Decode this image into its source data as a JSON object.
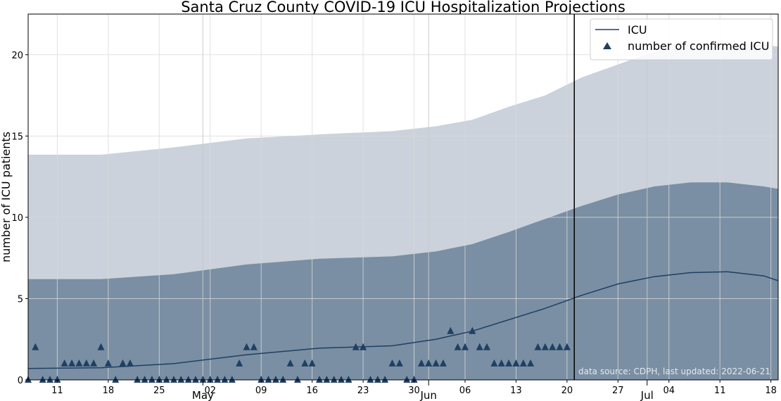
{
  "chart_data": {
    "type": "area",
    "title": "Santa Cruz County COVID-19 ICU Hospitalization Projections",
    "xlabel": "",
    "ylabel": "number of ICU patients",
    "ylim": [
      0,
      22.5
    ],
    "xlim": [
      "2022-04-07",
      "2022-07-19"
    ],
    "y_ticks": [
      0,
      5,
      10,
      15,
      20
    ],
    "x_ticks": [
      {
        "date": "2022-04-11",
        "label": "11"
      },
      {
        "date": "2022-04-18",
        "label": "18"
      },
      {
        "date": "2022-04-25",
        "label": "25"
      },
      {
        "date": "2022-05-02",
        "label": "02"
      },
      {
        "date": "2022-05-09",
        "label": "09"
      },
      {
        "date": "2022-05-16",
        "label": "16"
      },
      {
        "date": "2022-05-23",
        "label": "23"
      },
      {
        "date": "2022-05-30",
        "label": "30"
      },
      {
        "date": "2022-06-06",
        "label": "06"
      },
      {
        "date": "2022-06-13",
        "label": "13"
      },
      {
        "date": "2022-06-20",
        "label": "20"
      },
      {
        "date": "2022-06-27",
        "label": "27"
      },
      {
        "date": "2022-07-04",
        "label": "04"
      },
      {
        "date": "2022-07-11",
        "label": "11"
      },
      {
        "date": "2022-07-18",
        "label": "18"
      }
    ],
    "month_labels": [
      {
        "date": "2022-05-01",
        "label": "May"
      },
      {
        "date": "2022-06-01",
        "label": "Jun"
      },
      {
        "date": "2022-07-01",
        "label": "Jul"
      }
    ],
    "last_updated_line": "2022-06-21",
    "grid": true,
    "legend_position": "top-right",
    "annotation": "data source: CDPH, last updated: 2022-06-21",
    "series": [
      {
        "name": "ICU",
        "kind": "line",
        "x": [
          "2022-04-07",
          "2022-04-17",
          "2022-04-27",
          "2022-05-07",
          "2022-05-17",
          "2022-05-27",
          "2022-06-02",
          "2022-06-07",
          "2022-06-12",
          "2022-06-17",
          "2022-06-22",
          "2022-06-27",
          "2022-07-02",
          "2022-07-07",
          "2022-07-12",
          "2022-07-17",
          "2022-07-19"
        ],
        "y": [
          0.7,
          0.75,
          1.0,
          1.55,
          1.95,
          2.1,
          2.5,
          3.0,
          3.7,
          4.4,
          5.2,
          5.9,
          6.35,
          6.6,
          6.65,
          6.4,
          6.1
        ]
      },
      {
        "name": "number of confirmed ICU",
        "kind": "scatter",
        "x": [
          "2022-04-07",
          "2022-04-08",
          "2022-04-09",
          "2022-04-10",
          "2022-04-11",
          "2022-04-12",
          "2022-04-13",
          "2022-04-14",
          "2022-04-15",
          "2022-04-16",
          "2022-04-17",
          "2022-04-18",
          "2022-04-19",
          "2022-04-20",
          "2022-04-21",
          "2022-04-22",
          "2022-04-23",
          "2022-04-24",
          "2022-04-25",
          "2022-04-26",
          "2022-04-27",
          "2022-04-28",
          "2022-04-29",
          "2022-04-30",
          "2022-05-01",
          "2022-05-02",
          "2022-05-03",
          "2022-05-04",
          "2022-05-05",
          "2022-05-06",
          "2022-05-07",
          "2022-05-08",
          "2022-05-09",
          "2022-05-10",
          "2022-05-11",
          "2022-05-12",
          "2022-05-13",
          "2022-05-14",
          "2022-05-15",
          "2022-05-16",
          "2022-05-17",
          "2022-05-18",
          "2022-05-19",
          "2022-05-20",
          "2022-05-21",
          "2022-05-22",
          "2022-05-23",
          "2022-05-24",
          "2022-05-25",
          "2022-05-26",
          "2022-05-27",
          "2022-05-28",
          "2022-05-29",
          "2022-05-30",
          "2022-05-31",
          "2022-06-01",
          "2022-06-02",
          "2022-06-03",
          "2022-06-04",
          "2022-06-05",
          "2022-06-06",
          "2022-06-07",
          "2022-06-08",
          "2022-06-09",
          "2022-06-10",
          "2022-06-11",
          "2022-06-12",
          "2022-06-13",
          "2022-06-14",
          "2022-06-15",
          "2022-06-16",
          "2022-06-17",
          "2022-06-18",
          "2022-06-19",
          "2022-06-20"
        ],
        "y": [
          0,
          2,
          0,
          0,
          0,
          1,
          1,
          1,
          1,
          1,
          2,
          1,
          0,
          1,
          1,
          0,
          0,
          0,
          0,
          0,
          0,
          0,
          0,
          0,
          0,
          0,
          0,
          0,
          0,
          1,
          2,
          2,
          0,
          0,
          0,
          0,
          1,
          0,
          1,
          1,
          0,
          0,
          0,
          0,
          0,
          2,
          2,
          0,
          0,
          0,
          1,
          1,
          0,
          0,
          1,
          1,
          1,
          1,
          3,
          2,
          2,
          3,
          2,
          2,
          1,
          1,
          1,
          1,
          1,
          1,
          2,
          2,
          2,
          2,
          2
        ]
      },
      {
        "name": "",
        "kind": "band",
        "x": [
          "2022-04-07",
          "2022-04-17",
          "2022-04-27",
          "2022-05-07",
          "2022-05-17",
          "2022-05-27",
          "2022-06-02",
          "2022-06-07",
          "2022-06-12",
          "2022-06-17",
          "2022-06-22",
          "2022-06-27",
          "2022-07-02",
          "2022-07-07",
          "2022-07-12",
          "2022-07-17",
          "2022-07-19"
        ],
        "lower": [
          0,
          0,
          0,
          0,
          0,
          0,
          0,
          0,
          0,
          0,
          0,
          0.3,
          0.7,
          0.9,
          0.9,
          0.8,
          0.7
        ],
        "upper": [
          13.85,
          13.85,
          14.3,
          14.85,
          15.1,
          15.3,
          15.6,
          16.0,
          16.8,
          17.5,
          18.6,
          19.4,
          20.2,
          20.7,
          20.7,
          20.6,
          20.5
        ]
      },
      {
        "name": "",
        "kind": "band",
        "x": [
          "2022-04-07",
          "2022-04-17",
          "2022-04-27",
          "2022-05-07",
          "2022-05-17",
          "2022-05-27",
          "2022-06-02",
          "2022-06-07",
          "2022-06-12",
          "2022-06-17",
          "2022-06-22",
          "2022-06-27",
          "2022-07-02",
          "2022-07-07",
          "2022-07-12",
          "2022-07-17",
          "2022-07-19"
        ],
        "lower": [
          0,
          0,
          0,
          0,
          0,
          0,
          0,
          0,
          0,
          0,
          0,
          0,
          0,
          0,
          0,
          0,
          0
        ],
        "upper": [
          6.2,
          6.2,
          6.5,
          7.1,
          7.45,
          7.6,
          7.9,
          8.35,
          9.1,
          9.9,
          10.7,
          11.4,
          11.9,
          12.15,
          12.15,
          11.9,
          11.75
        ]
      }
    ]
  },
  "colors": {
    "line": "#1f3f63",
    "marker": "#1f3f63",
    "band_outer": "#cbd2db",
    "band_inner": "#7a8fa3",
    "vline": "#000000",
    "grid": "#d9d9d9"
  }
}
